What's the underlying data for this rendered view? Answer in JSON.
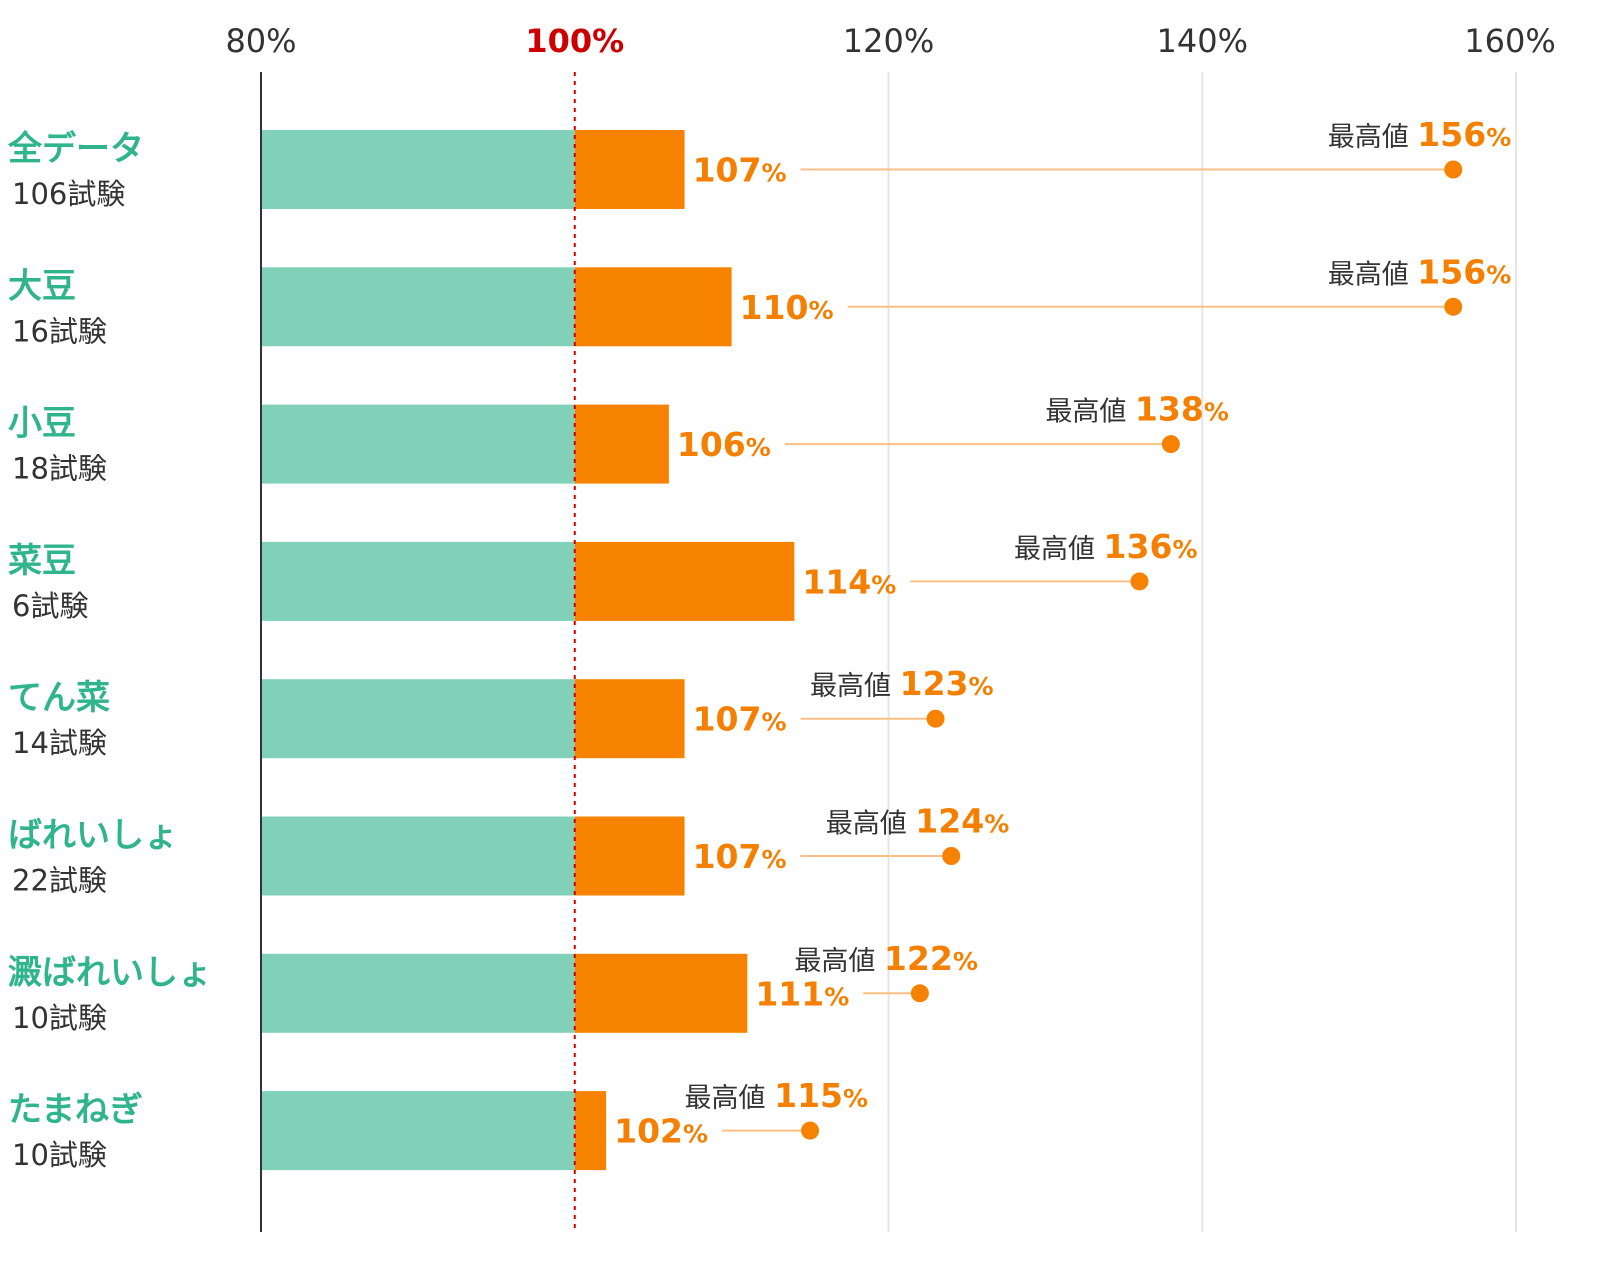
{
  "chart_data": {
    "type": "bar",
    "xlim": [
      80,
      160
    ],
    "ticks": [
      {
        "value": 80,
        "label": "80%"
      },
      {
        "value": 100,
        "label": "100%"
      },
      {
        "value": 120,
        "label": "120%"
      },
      {
        "value": 140,
        "label": "140%"
      },
      {
        "value": 160,
        "label": "160%"
      }
    ],
    "reference_value": 100,
    "value_unit": "%",
    "max_prefix": "最高値",
    "categories": [
      {
        "name": "全データ",
        "trials": "106試験",
        "value": 107,
        "max": 156
      },
      {
        "name": "大豆",
        "trials": "16試験",
        "value": 110,
        "max": 156
      },
      {
        "name": "小豆",
        "trials": "18試験",
        "value": 106,
        "max": 138
      },
      {
        "name": "菜豆",
        "trials": "6試験",
        "value": 114,
        "max": 136
      },
      {
        "name": "てん菜",
        "trials": "14試験",
        "value": 107,
        "max": 123
      },
      {
        "name": "ばれいしょ",
        "trials": "22試験",
        "value": 107,
        "max": 124
      },
      {
        "name": "澱ばれいしょ",
        "trials": "10試験",
        "value": 111,
        "max": 122
      },
      {
        "name": "たまねぎ",
        "trials": "10試験",
        "value": 102,
        "max": 115
      }
    ],
    "colors": {
      "base_bar": "#81d1b9",
      "increase_bar": "#f78200",
      "value_text": "#f57f00",
      "category_text": "#2fb48c",
      "reference_tick": "#cc0000",
      "reference_line": "#cc0000",
      "connector": "#fbbf85",
      "grid": "#e5e5e5",
      "axis": "#333333"
    }
  }
}
